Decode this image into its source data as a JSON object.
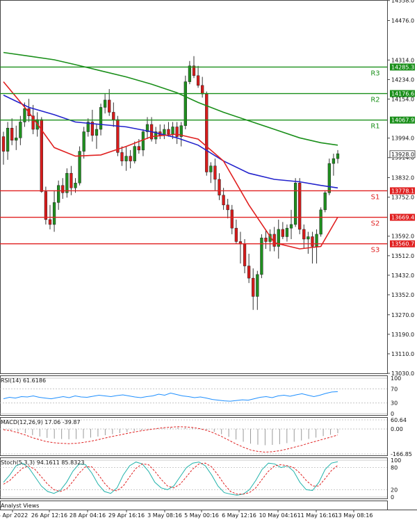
{
  "chart_data": [
    {
      "type": "candlestick",
      "panel": "price",
      "title": "",
      "y_ticks": [
        14558.0,
        14476.0,
        14314.0,
        14234.0,
        14154.0,
        13994.0,
        13914.0,
        13832.0,
        13752.0,
        13592.0,
        13512.0,
        13432.0,
        13352.0,
        13270.0,
        13190.0,
        13110.0,
        13030.0
      ],
      "ylim": [
        13030.0,
        14560.0
      ],
      "x_ticks": [
        "5 Apr 2022",
        "26 Apr 12:16",
        "28 Apr 04:16",
        "29 Apr 16:16",
        "3 May 08:16",
        "5 May 00:16",
        "6 May 12:16",
        "10 May 04:16",
        "11 May 16:16",
        "13 May 08:16"
      ],
      "last_price": "13928.0",
      "levels": [
        {
          "code": "R3",
          "value": "14285.3",
          "color": "#1a8f1a"
        },
        {
          "code": "R2",
          "value": "14176.6",
          "color": "#1a8f1a"
        },
        {
          "code": "R1",
          "value": "14067.9",
          "color": "#1a8f1a"
        },
        {
          "code": "S1",
          "value": "13778.1",
          "color": "#e02020"
        },
        {
          "code": "S2",
          "value": "13669.4",
          "color": "#e02020"
        },
        {
          "code": "S3",
          "value": "13560.7",
          "color": "#e02020"
        }
      ],
      "candles": [
        [
          14000,
          14020,
          13885,
          13940
        ],
        [
          13940,
          14060,
          13905,
          14035
        ],
        [
          14035,
          14075,
          13965,
          13985
        ],
        [
          13985,
          14045,
          13945,
          13995
        ],
        [
          13995,
          14085,
          13965,
          14060
        ],
        [
          14060,
          14140,
          14040,
          14115
        ],
        [
          14115,
          14155,
          14060,
          14085
        ],
        [
          14085,
          14130,
          14010,
          14030
        ],
        [
          14030,
          14100,
          14000,
          14070
        ],
        [
          14070,
          14080,
          13770,
          13775
        ],
        [
          13775,
          13795,
          13640,
          13660
        ],
        [
          13660,
          13720,
          13620,
          13640
        ],
        [
          13640,
          13780,
          13610,
          13730
        ],
        [
          13730,
          13820,
          13700,
          13800
        ],
        [
          13800,
          13830,
          13745,
          13770
        ],
        [
          13770,
          13870,
          13750,
          13850
        ],
        [
          13850,
          13880,
          13760,
          13790
        ],
        [
          13790,
          13830,
          13770,
          13810
        ],
        [
          13810,
          13960,
          13800,
          13940
        ],
        [
          13940,
          14040,
          13910,
          14020
        ],
        [
          14020,
          14075,
          14000,
          14060
        ],
        [
          14060,
          14110,
          13980,
          14005
        ],
        [
          14005,
          14050,
          13950,
          14030
        ],
        [
          14030,
          14135,
          14005,
          14120
        ],
        [
          14120,
          14175,
          14095,
          14150
        ],
        [
          14150,
          14195,
          14085,
          14100
        ],
        [
          14100,
          14140,
          14040,
          14070
        ],
        [
          14070,
          14085,
          13920,
          13935
        ],
        [
          13935,
          13960,
          13880,
          13900
        ],
        [
          13900,
          13960,
          13860,
          13920
        ],
        [
          13920,
          13945,
          13870,
          13900
        ],
        [
          13900,
          13980,
          13890,
          13960
        ],
        [
          13960,
          13990,
          13930,
          13945
        ],
        [
          13945,
          14030,
          13920,
          14020
        ],
        [
          14020,
          14080,
          13990,
          14050
        ],
        [
          14050,
          14080,
          13980,
          13990
        ],
        [
          13990,
          14040,
          13970,
          14020
        ],
        [
          14020,
          14050,
          13990,
          14005
        ],
        [
          14005,
          14050,
          13990,
          14030
        ],
        [
          14030,
          14060,
          14000,
          14010
        ],
        [
          14010,
          14060,
          13990,
          14040
        ],
        [
          14040,
          14060,
          13970,
          14000
        ],
        [
          14000,
          14060,
          13960,
          14045
        ],
        [
          14045,
          14250,
          14030,
          14225
        ],
        [
          14225,
          14310,
          14215,
          14290
        ],
        [
          14290,
          14330,
          14240,
          14250
        ],
        [
          14250,
          14290,
          14200,
          14210
        ],
        [
          14210,
          14245,
          14160,
          14175
        ],
        [
          14175,
          14185,
          13840,
          13855
        ],
        [
          13855,
          13895,
          13810,
          13880
        ],
        [
          13880,
          13910,
          13780,
          13825
        ],
        [
          13825,
          13850,
          13740,
          13760
        ],
        [
          13760,
          13790,
          13700,
          13720
        ],
        [
          13720,
          13745,
          13665,
          13700
        ],
        [
          13700,
          13720,
          13600,
          13625
        ],
        [
          13625,
          13660,
          13560,
          13570
        ],
        [
          13570,
          13610,
          13480,
          13560
        ],
        [
          13560,
          13580,
          13440,
          13470
        ],
        [
          13470,
          13520,
          13400,
          13420
        ],
        [
          13420,
          13460,
          13290,
          13345
        ],
        [
          13345,
          13450,
          13290,
          13435
        ],
        [
          13435,
          13600,
          13420,
          13585
        ],
        [
          13585,
          13620,
          13540,
          13570
        ],
        [
          13570,
          13620,
          13530,
          13600
        ],
        [
          13600,
          13630,
          13530,
          13550
        ],
        [
          13550,
          13660,
          13500,
          13620
        ],
        [
          13620,
          13650,
          13580,
          13590
        ],
        [
          13590,
          13640,
          13570,
          13625
        ],
        [
          13625,
          13700,
          13580,
          13640
        ],
        [
          13640,
          13830,
          13630,
          13810
        ],
        [
          13810,
          13830,
          13600,
          13620
        ],
        [
          13620,
          13640,
          13540,
          13580
        ],
        [
          13580,
          13610,
          13520,
          13590
        ],
        [
          13590,
          13610,
          13480,
          13550
        ],
        [
          13550,
          13620,
          13480,
          13600
        ],
        [
          13600,
          13710,
          13590,
          13700
        ],
        [
          13700,
          13780,
          13690,
          13770
        ],
        [
          13770,
          13910,
          13760,
          13890
        ],
        [
          13890,
          13930,
          13840,
          13910
        ],
        [
          13910,
          13945,
          13890,
          13930
        ]
      ],
      "series": [
        {
          "name": "",
          "color": "#1a8f1a",
          "values": [
            14345,
            14330,
            14315,
            14295,
            14270,
            14245,
            14215,
            14180,
            14140,
            14100,
            14065,
            14030,
            13995,
            13975,
            13965
          ]
        },
        {
          "name": "",
          "color": "#2222cc",
          "values": [
            14170,
            14120,
            14090,
            14060,
            14050,
            14040,
            14020,
            13995,
            13965,
            13900,
            13850,
            13825,
            13815,
            13800,
            13790
          ]
        },
        {
          "name": "",
          "color": "#e02020",
          "values": [
            14225,
            14100,
            13955,
            13920,
            13925,
            13960,
            14000,
            14010,
            13990,
            13900,
            13720,
            13565,
            13540,
            13550,
            13670
          ]
        }
      ],
      "series_x": [
        0,
        6,
        12,
        17,
        23,
        29,
        35,
        41,
        46,
        52,
        58,
        64,
        70,
        75,
        79
      ]
    },
    {
      "type": "line",
      "panel": "rsi",
      "title": "RSI(14) 61.6186",
      "y_ticks": [
        "100",
        "70",
        "30",
        "0"
      ],
      "ylim": [
        0,
        100
      ],
      "series": [
        {
          "name": "",
          "color": "#1e8fff",
          "values": [
            42,
            46,
            44,
            48,
            47,
            50,
            46,
            44,
            42,
            45,
            48,
            45,
            50,
            47,
            46,
            49,
            52,
            50,
            48,
            51,
            53,
            50,
            47,
            45,
            48,
            50,
            55,
            52,
            58,
            54,
            50,
            48,
            45,
            47,
            44,
            40,
            38,
            36,
            35,
            37,
            39,
            38,
            42,
            46,
            48,
            45,
            50,
            52,
            49,
            53,
            56,
            52,
            48,
            52,
            57,
            61,
            62
          ]
        }
      ]
    },
    {
      "type": "line",
      "panel": "macd",
      "title": "MACD(12,26,9) 17.06 -39.87",
      "y_ticks": [
        "60.64",
        "0.00",
        "-166.85"
      ],
      "ylim": [
        -166.85,
        60.64
      ],
      "series": [
        {
          "name": "",
          "color": "#e02020",
          "values": [
            -5,
            -12,
            -25,
            -40,
            -58,
            -72,
            -85,
            -92,
            -96,
            -98,
            -96,
            -90,
            -82,
            -72,
            -60,
            -50,
            -40,
            -30,
            -20,
            -12,
            -5,
            2,
            8,
            12,
            15,
            14,
            10,
            2,
            -10,
            -28,
            -50,
            -75,
            -100,
            -122,
            -140,
            -150,
            -155,
            -152,
            -145,
            -135,
            -122,
            -110,
            -95,
            -82,
            -68,
            -55,
            -40
          ]
        }
      ]
    },
    {
      "type": "line",
      "panel": "stoch",
      "title": "Stoch(5,3,3) 94.1611 85.8323",
      "y_ticks": [
        "100",
        "80",
        "20",
        "0"
      ],
      "ylim": [
        0,
        100
      ],
      "series": [
        {
          "name": "",
          "color": "#20b2aa",
          "values": [
            40,
            60,
            85,
            92,
            80,
            55,
            30,
            15,
            10,
            18,
            40,
            70,
            90,
            88,
            65,
            35,
            15,
            10,
            25,
            60,
            85,
            95,
            90,
            70,
            40,
            25,
            20,
            30,
            55,
            80,
            92,
            95,
            85,
            60,
            30,
            12,
            8,
            5,
            8,
            20,
            45,
            75,
            92,
            90,
            80,
            85,
            70,
            40,
            20,
            18,
            40,
            75,
            92,
            96
          ]
        },
        {
          "name": "",
          "color": "#e02020",
          "values": [
            35,
            45,
            62,
            78,
            85,
            75,
            55,
            35,
            20,
            15,
            22,
            42,
            65,
            82,
            82,
            62,
            38,
            20,
            17,
            30,
            55,
            78,
            90,
            88,
            70,
            48,
            30,
            25,
            35,
            55,
            76,
            90,
            92,
            82,
            60,
            35,
            15,
            8,
            8,
            12,
            25,
            48,
            70,
            85,
            88,
            85,
            80,
            65,
            45,
            30,
            30,
            50,
            72,
            86
          ]
        }
      ]
    }
  ],
  "branding": {
    "footer_text": "Analyst Views"
  }
}
